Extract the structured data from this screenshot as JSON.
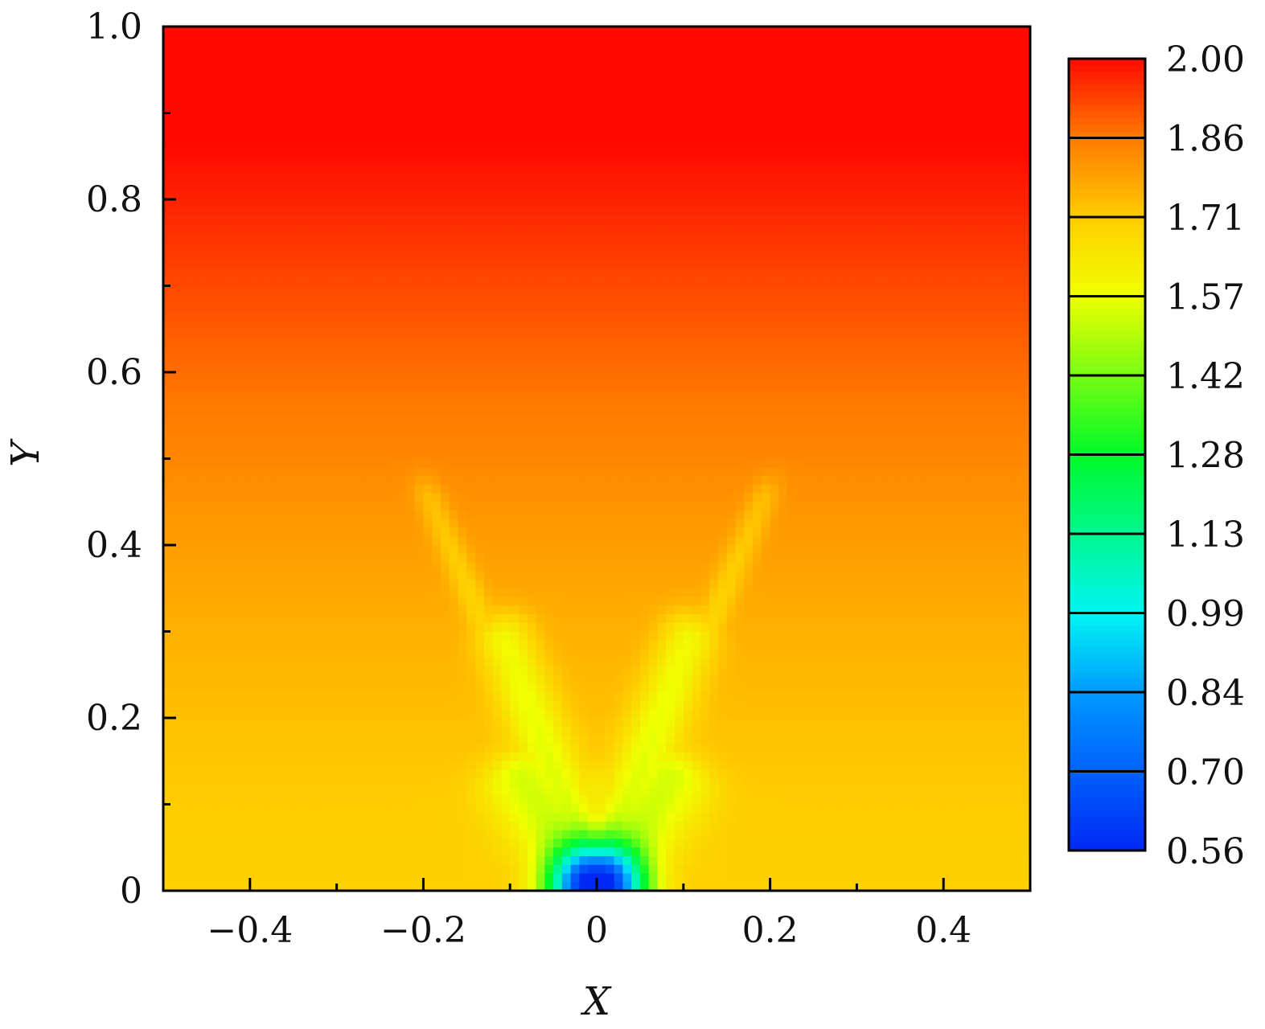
{
  "chart_data": {
    "type": "heatmap",
    "title": "",
    "xlabel": "X",
    "ylabel": "Y",
    "xlim": [
      -0.5,
      0.5
    ],
    "ylim": [
      0,
      1.0
    ],
    "x_ticks": [
      {
        "value": -0.4,
        "label": "−0.4"
      },
      {
        "value": -0.2,
        "label": "−0.2"
      },
      {
        "value": 0,
        "label": "0"
      },
      {
        "value": 0.2,
        "label": "0.2"
      },
      {
        "value": 0.4,
        "label": "0.4"
      }
    ],
    "x_minor_ticks": [
      -0.3,
      -0.1,
      0.1,
      0.3
    ],
    "y_ticks": [
      {
        "value": 0,
        "label": "0"
      },
      {
        "value": 0.2,
        "label": "0.2"
      },
      {
        "value": 0.4,
        "label": "0.4"
      },
      {
        "value": 0.6,
        "label": "0.6"
      },
      {
        "value": 0.8,
        "label": "0.8"
      },
      {
        "value": 1.0,
        "label": "1.0"
      }
    ],
    "y_minor_ticks": [
      0.1,
      0.3,
      0.5,
      0.7,
      0.9
    ],
    "colorbar": {
      "min": 0.56,
      "max": 2.0,
      "levels": [
        "0.56",
        "0.70",
        "0.84",
        "0.99",
        "1.13",
        "1.28",
        "1.42",
        "1.57",
        "1.71",
        "1.86",
        "2.00"
      ],
      "colormap": "blue-cyan-green-yellow-orange-red"
    },
    "field_description_values": {
      "top_value": 2.0,
      "background_near_bottom": 1.71,
      "minimum_at_origin": 0.56,
      "jet_tips": [
        {
          "x": -0.2,
          "y": 0.46,
          "value": 1.76
        },
        {
          "x": 0.2,
          "y": 0.46,
          "value": 1.76
        },
        {
          "x": -0.12,
          "y": 0.3,
          "value": 1.62
        },
        {
          "x": 0.12,
          "y": 0.3,
          "value": 1.62
        }
      ]
    },
    "grid": false,
    "legend": "colorbar-right"
  }
}
